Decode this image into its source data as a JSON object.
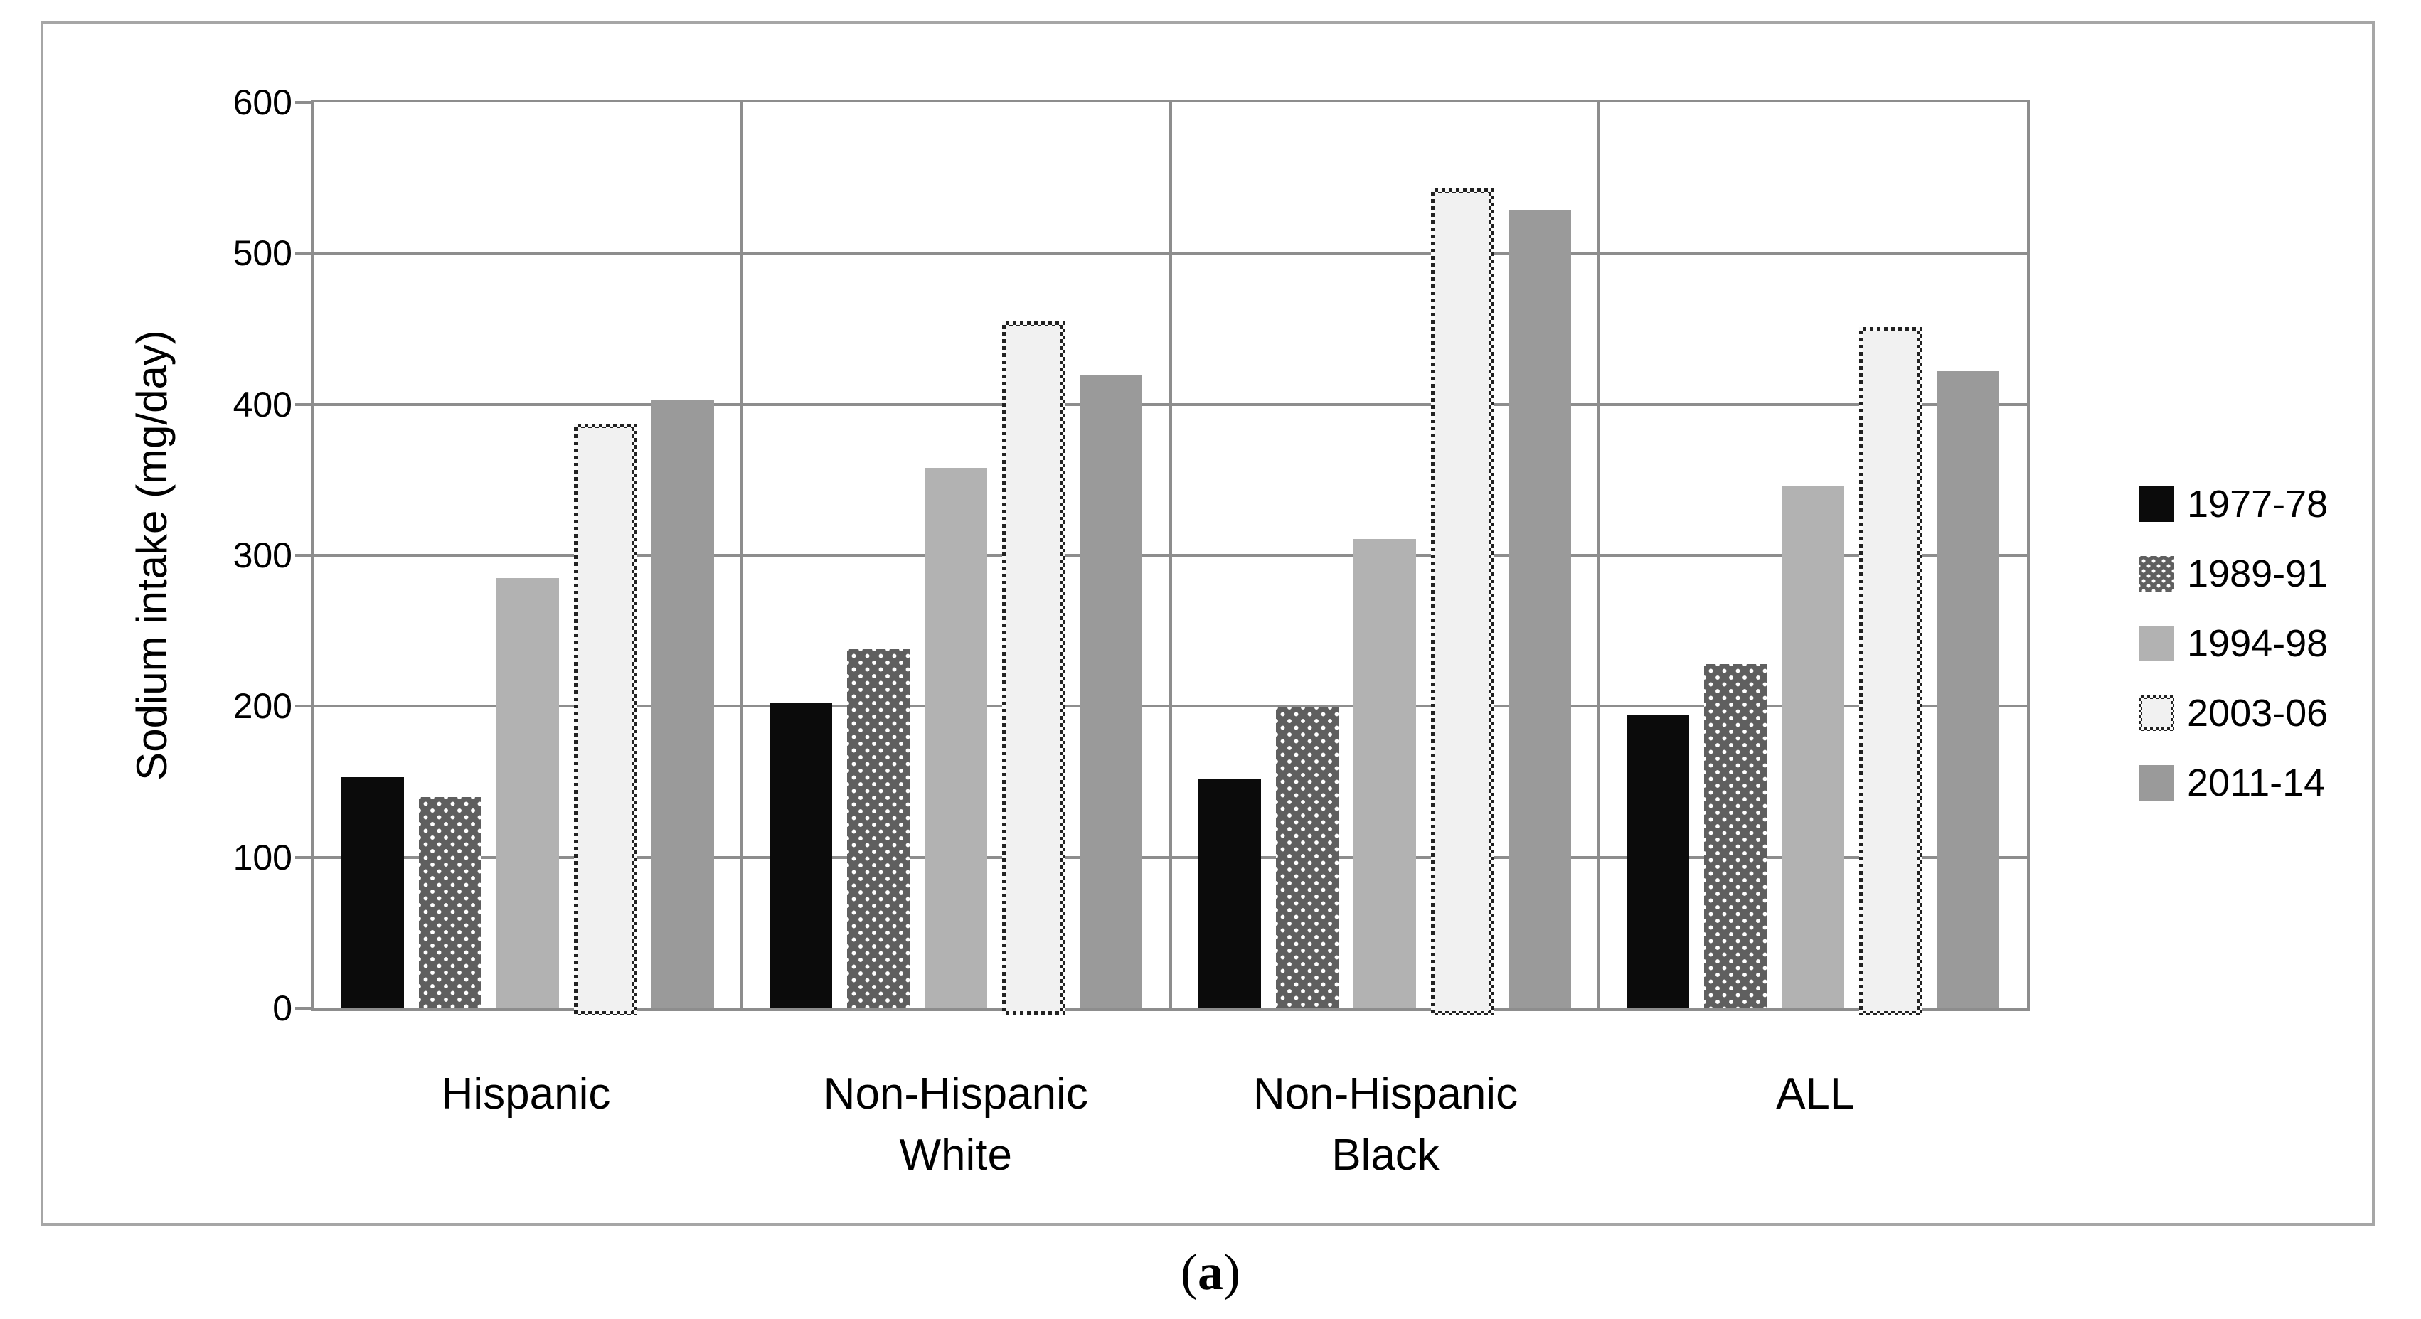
{
  "figure": {
    "y_axis_title": "Sodium intake (mg/day)",
    "caption_open": "(",
    "caption_letter": "a",
    "caption_close": ")"
  },
  "chart_data": {
    "type": "bar",
    "title": "",
    "xlabel": "",
    "ylabel": "Sodium intake (mg/day)",
    "ylim": [
      0,
      600
    ],
    "yticks": [
      0,
      100,
      200,
      300,
      400,
      500,
      600
    ],
    "grid": "horizontal-major",
    "legend_position": "right-outside",
    "caption": "(a)",
    "categories": [
      "Hispanic",
      "Non-Hispanic White",
      "Non-Hispanic Black",
      "ALL"
    ],
    "category_label_lines": [
      [
        "Hispanic"
      ],
      [
        "Non-Hispanic",
        "White"
      ],
      [
        "Non-Hispanic",
        "Black"
      ],
      [
        "ALL"
      ]
    ],
    "series": [
      {
        "name": "1977-78",
        "style": "solid-black",
        "color": "#0b0b0b",
        "values": [
          153,
          202,
          152,
          194
        ]
      },
      {
        "name": "1989-91",
        "style": "dark-gray-white-dots",
        "color": "#5f5f5f",
        "values": [
          140,
          238,
          199,
          228
        ]
      },
      {
        "name": "1994-98",
        "style": "solid-light-gray",
        "color": "#b2b2b2",
        "values": [
          285,
          358,
          311,
          346
        ]
      },
      {
        "name": "2003-06",
        "style": "white-fill-checkered-border",
        "color": "#f1f1f1",
        "values": [
          387,
          455,
          543,
          451
        ]
      },
      {
        "name": "2011-14",
        "style": "solid-medium-gray",
        "color": "#9a9a9a",
        "values": [
          403,
          419,
          529,
          422
        ]
      }
    ],
    "colors": {
      "gridline": "#8d8d8d",
      "frame_border": "#a6a6a6",
      "background": "#ffffff"
    }
  }
}
